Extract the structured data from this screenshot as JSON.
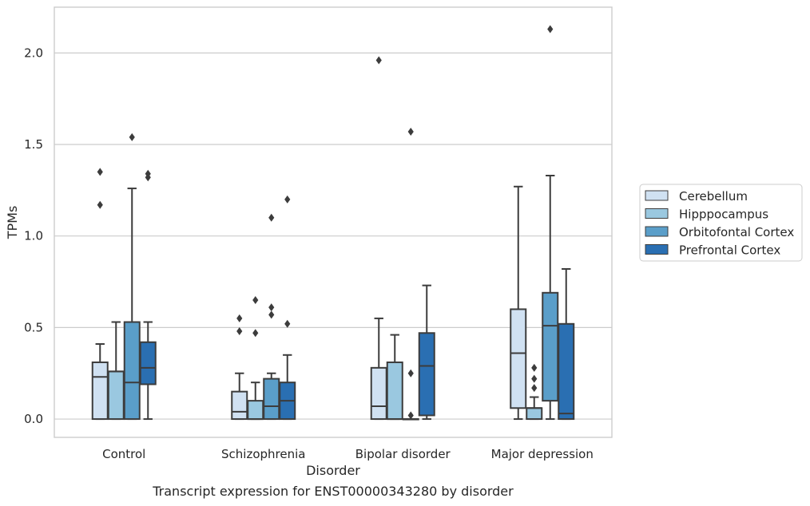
{
  "caption": "Transcript expression for ENST00000343280 by disorder",
  "chart_data": {
    "type": "box",
    "title": "",
    "xlabel": "Disorder",
    "ylabel": "TPMs",
    "ylim": [
      -0.1,
      2.25
    ],
    "yticks": [
      0.0,
      0.5,
      1.0,
      1.5,
      2.0
    ],
    "ytick_labels": [
      "0.0",
      "0.5",
      "1.0",
      "1.5",
      "2.0"
    ],
    "grid": "horizontal",
    "legend_position": "right",
    "categories": [
      "Control",
      "Schizophrenia",
      "Bipolar disorder",
      "Major depression"
    ],
    "series": [
      {
        "name": "Cerebellum",
        "color": "#d0e1f2",
        "boxes": [
          {
            "whisker_low": 0.0,
            "q1": 0.0,
            "median": 0.23,
            "q3": 0.31,
            "whisker_high": 0.41,
            "outliers": [
              1.17,
              1.35
            ]
          },
          {
            "whisker_low": 0.0,
            "q1": 0.0,
            "median": 0.04,
            "q3": 0.15,
            "whisker_high": 0.25,
            "outliers": [
              0.48,
              0.55
            ]
          },
          {
            "whisker_low": 0.0,
            "q1": 0.0,
            "median": 0.07,
            "q3": 0.28,
            "whisker_high": 0.55,
            "outliers": [
              1.96
            ]
          },
          {
            "whisker_low": 0.0,
            "q1": 0.06,
            "median": 0.36,
            "q3": 0.6,
            "whisker_high": 1.27,
            "outliers": []
          }
        ]
      },
      {
        "name": "Hipppocampus",
        "color": "#9ac8e0",
        "boxes": [
          {
            "whisker_low": 0.0,
            "q1": 0.0,
            "median": 0.26,
            "q3": 0.26,
            "whisker_high": 0.53,
            "outliers": []
          },
          {
            "whisker_low": 0.0,
            "q1": 0.0,
            "median": 0.0,
            "q3": 0.1,
            "whisker_high": 0.2,
            "outliers": [
              0.47,
              0.65
            ]
          },
          {
            "whisker_low": 0.0,
            "q1": 0.0,
            "median": 0.0,
            "q3": 0.31,
            "whisker_high": 0.46,
            "outliers": []
          },
          {
            "whisker_low": 0.0,
            "q1": 0.0,
            "median": 0.06,
            "q3": 0.06,
            "whisker_high": 0.12,
            "outliers": [
              0.17,
              0.22,
              0.28
            ]
          }
        ]
      },
      {
        "name": "Orbitofontal Cortex",
        "color": "#5a9ec9",
        "boxes": [
          {
            "whisker_low": 0.0,
            "q1": 0.0,
            "median": 0.2,
            "q3": 0.53,
            "whisker_high": 1.26,
            "outliers": [
              1.54
            ]
          },
          {
            "whisker_low": 0.0,
            "q1": 0.0,
            "median": 0.07,
            "q3": 0.22,
            "whisker_high": 0.25,
            "outliers": [
              0.57,
              0.61,
              1.1
            ]
          },
          {
            "whisker_low": 0.0,
            "q1": 0.0,
            "median": 0.0,
            "q3": 0.0,
            "whisker_high": 0.0,
            "outliers": [
              0.02,
              0.25,
              1.57
            ]
          },
          {
            "whisker_low": 0.0,
            "q1": 0.1,
            "median": 0.51,
            "q3": 0.69,
            "whisker_high": 1.33,
            "outliers": [
              2.13
            ]
          }
        ]
      },
      {
        "name": "Prefrontal Cortex",
        "color": "#2a6fb2",
        "boxes": [
          {
            "whisker_low": 0.0,
            "q1": 0.19,
            "median": 0.28,
            "q3": 0.42,
            "whisker_high": 0.53,
            "outliers": [
              1.32,
              1.34
            ]
          },
          {
            "whisker_low": 0.0,
            "q1": 0.0,
            "median": 0.1,
            "q3": 0.2,
            "whisker_high": 0.35,
            "outliers": [
              0.52,
              1.2
            ]
          },
          {
            "whisker_low": 0.0,
            "q1": 0.02,
            "median": 0.29,
            "q3": 0.47,
            "whisker_high": 0.73,
            "outliers": []
          },
          {
            "whisker_low": 0.0,
            "q1": 0.0,
            "median": 0.03,
            "q3": 0.52,
            "whisker_high": 0.82,
            "outliers": []
          }
        ]
      }
    ]
  }
}
